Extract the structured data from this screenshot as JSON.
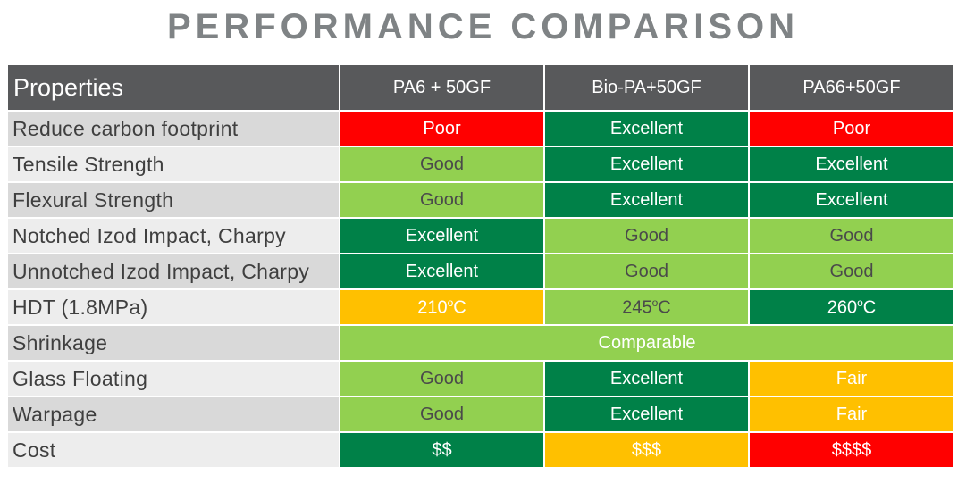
{
  "title": "PERFORMANCE COMPARISON",
  "colors": {
    "poor": "#ff0000",
    "excellent": "#008148",
    "good": "#92d050",
    "fair": "#ffc000",
    "header": "#58595b",
    "title": "#7f8385"
  },
  "header": {
    "properties": "Properties",
    "col1": "PA6 + 50GF",
    "col2": "Bio-PA+50GF",
    "col3": "PA66+50GF"
  },
  "rows": [
    {
      "property": "Reduce carbon footprint",
      "c1": "Poor",
      "c2": "Excellent",
      "c3": "Poor"
    },
    {
      "property": "Tensile Strength",
      "c1": "Good",
      "c2": "Excellent",
      "c3": "Excellent"
    },
    {
      "property": "Flexural Strength",
      "c1": "Good",
      "c2": "Excellent",
      "c3": "Excellent"
    },
    {
      "property": "Notched Izod Impact, Charpy",
      "c1": "Excellent",
      "c2": "Good",
      "c3": "Good"
    },
    {
      "property": "Unnotched Izod Impact, Charpy",
      "c1": "Excellent",
      "c2": "Good",
      "c3": "Good"
    },
    {
      "property": "HDT (1.8MPa)",
      "c1": "210",
      "c2": "245",
      "c3": "260",
      "unit": "℃",
      "unit_super": "o",
      "unit_letter": "C"
    },
    {
      "property": "Shrinkage",
      "merged": "Comparable"
    },
    {
      "property": "Glass Floating",
      "c1": "Good",
      "c2": "Excellent",
      "c3": "Fair"
    },
    {
      "property": "Warpage",
      "c1": "Good",
      "c2": "Excellent",
      "c3": "Fair"
    },
    {
      "property": "Cost",
      "c1": "$$",
      "c2": "$$$",
      "c3": "$$$$"
    }
  ]
}
